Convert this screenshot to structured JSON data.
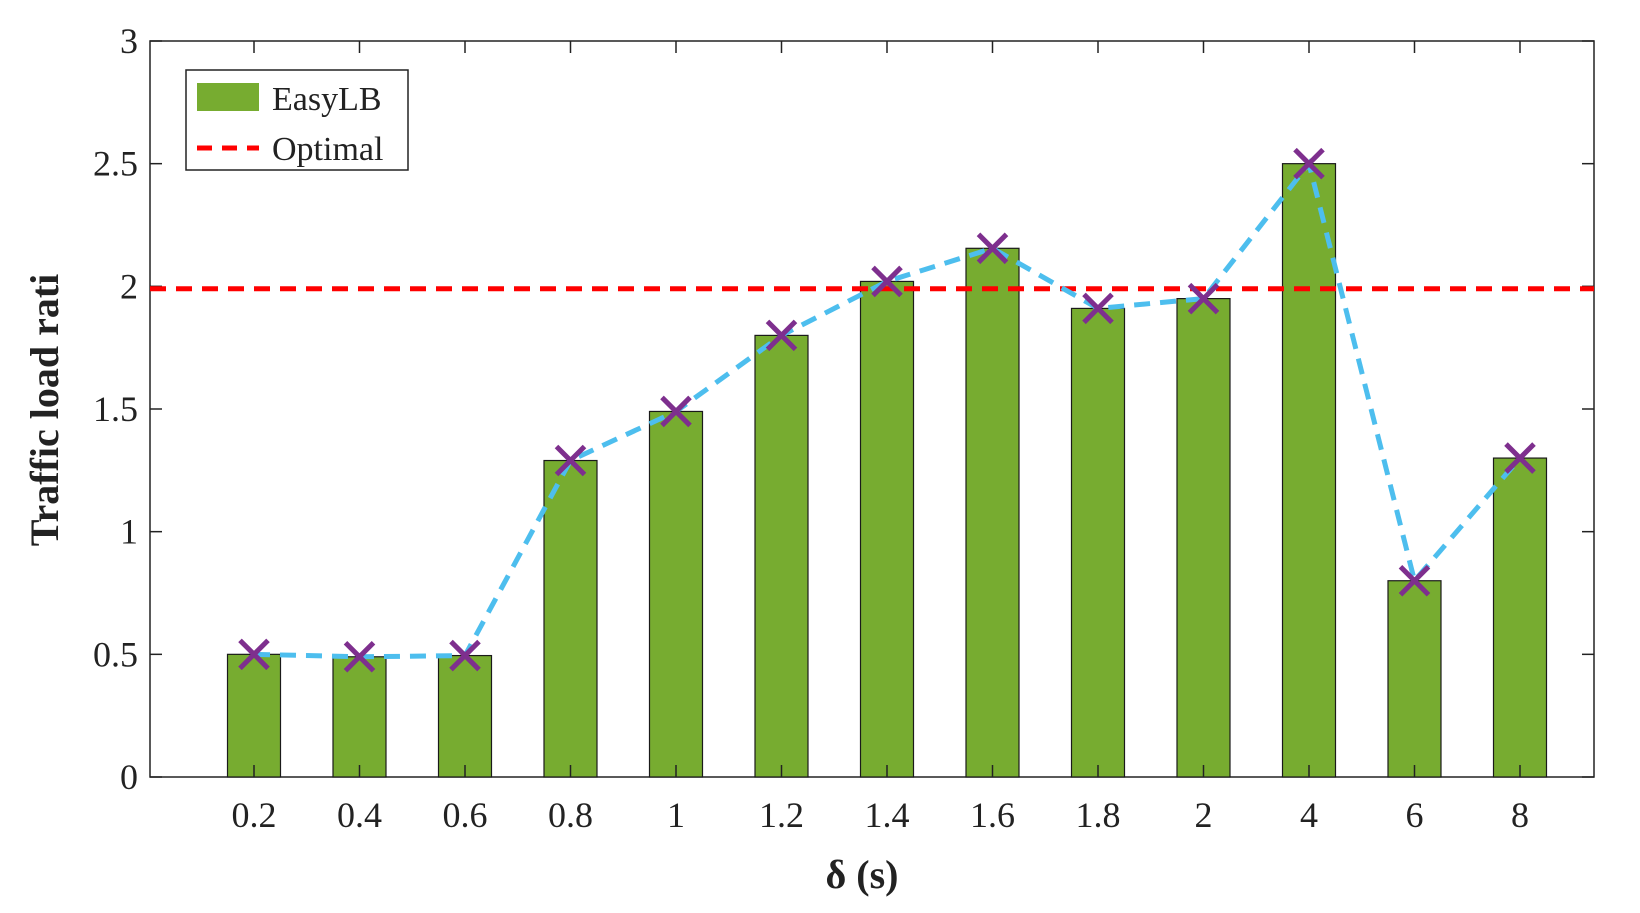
{
  "chart_data": {
    "type": "bar",
    "title": "",
    "xlabel": "δ (s)",
    "ylabel": "Traffic load rati",
    "categories": [
      "0.2",
      "0.4",
      "0.6",
      "0.8",
      "1",
      "1.2",
      "1.4",
      "1.6",
      "1.8",
      "2",
      "4",
      "6",
      "8"
    ],
    "series": [
      {
        "name": "EasyLB",
        "type": "bar",
        "values": [
          0.5,
          0.49,
          0.495,
          1.29,
          1.49,
          1.8,
          2.02,
          2.155,
          1.91,
          1.95,
          2.5,
          0.8,
          1.3
        ],
        "color": "#77ac30"
      },
      {
        "name": "",
        "type": "line",
        "style": "dashed",
        "marker": "x",
        "values": [
          0.5,
          0.49,
          0.495,
          1.29,
          1.49,
          1.8,
          2.02,
          2.155,
          1.91,
          1.95,
          2.5,
          0.8,
          1.3
        ],
        "color": "#4dbeee",
        "marker_color": "#7e2f8e"
      },
      {
        "name": "Optimal",
        "type": "hline",
        "style": "dashed",
        "value": 1.99,
        "color": "#ff0000"
      }
    ],
    "yticks": [
      "0",
      "0.5",
      "1",
      "1.5",
      "2",
      "2.5",
      "3"
    ],
    "ylim": [
      0,
      3
    ],
    "grid": false,
    "legend_position": "top-left"
  }
}
